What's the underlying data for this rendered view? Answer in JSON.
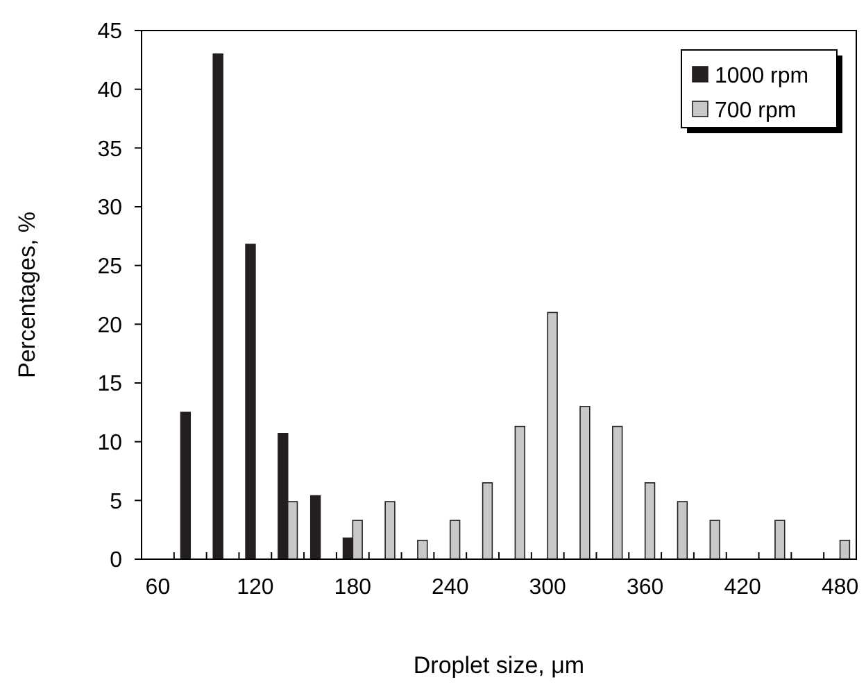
{
  "chart_data": {
    "type": "bar",
    "xlabel": "Droplet size, μm",
    "ylabel": "Percentages, %",
    "categories": [
      "60",
      null,
      null,
      "120",
      null,
      null,
      "180",
      null,
      null,
      "240",
      null,
      null,
      "300",
      null,
      null,
      "360",
      null,
      null,
      "420",
      null,
      null,
      "480"
    ],
    "series": [
      {
        "name": "1000 rpm",
        "color": "#231f20",
        "values": [
          0,
          12.5,
          43,
          26.8,
          10.7,
          5.4,
          1.8,
          0,
          0,
          0,
          0,
          0,
          0,
          0,
          0,
          0,
          0,
          0,
          0,
          0,
          0,
          0
        ]
      },
      {
        "name": "700 rpm",
        "color": "#c8c8c8",
        "values": [
          0,
          0,
          0,
          0,
          4.9,
          0,
          3.3,
          4.9,
          1.6,
          3.3,
          6.5,
          11.3,
          21,
          13,
          11.3,
          6.5,
          4.9,
          3.3,
          0,
          3.3,
          0,
          1.6
        ]
      }
    ],
    "ylim": [
      0,
      45
    ],
    "yticks": [
      0,
      5,
      10,
      15,
      20,
      25,
      30,
      35,
      40,
      45
    ],
    "legend": "top right"
  }
}
